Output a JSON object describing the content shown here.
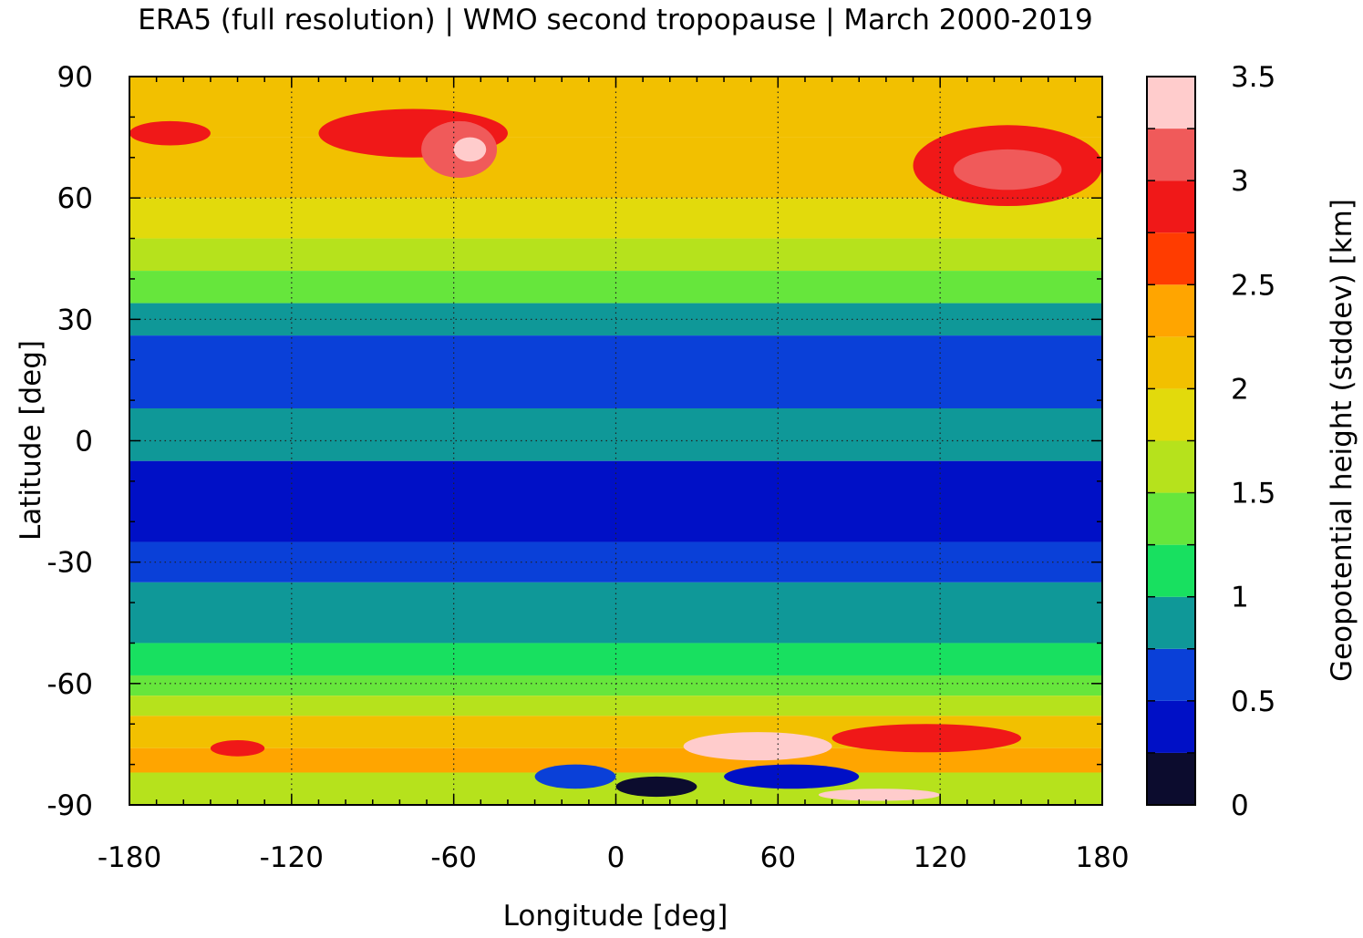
{
  "chart_data": {
    "type": "heatmap",
    "title": "ERA5 (full resolution) | WMO second tropopause | March 2000-2019",
    "xlabel": "Longitude [deg]",
    "ylabel": "Latitude [deg]",
    "colorbar_label": "Geopotential height (stddev) [km]",
    "xlim": [
      -180,
      180
    ],
    "ylim": [
      -90,
      90
    ],
    "xticks": [
      "-180",
      "-120",
      "-60",
      "0",
      "60",
      "120",
      "180"
    ],
    "yticks": [
      "90",
      "60",
      "30",
      "0",
      "-30",
      "-60",
      "-90"
    ],
    "xtick_values": [
      -180,
      -120,
      -60,
      0,
      60,
      120,
      180
    ],
    "ytick_values": [
      90,
      60,
      30,
      0,
      -30,
      -60,
      -90
    ],
    "grid": true,
    "colorbar": {
      "range": [
        0,
        3.5
      ],
      "tick_labels": [
        "0",
        "0.5",
        "1",
        "1.5",
        "2",
        "2.5",
        "3",
        "3.5"
      ],
      "tick_values": [
        0,
        0.5,
        1,
        1.5,
        2,
        2.5,
        3,
        3.5
      ],
      "levels": [
        {
          "from": 0.0,
          "to": 0.25,
          "color": "#0c0c2e"
        },
        {
          "from": 0.25,
          "to": 0.5,
          "color": "#0010c6"
        },
        {
          "from": 0.5,
          "to": 0.75,
          "color": "#0a40d8"
        },
        {
          "from": 0.75,
          "to": 1.0,
          "color": "#0f9898"
        },
        {
          "from": 1.0,
          "to": 1.25,
          "color": "#18e060"
        },
        {
          "from": 1.25,
          "to": 1.5,
          "color": "#66e63c"
        },
        {
          "from": 1.5,
          "to": 1.75,
          "color": "#b6e21c"
        },
        {
          "from": 1.75,
          "to": 2.0,
          "color": "#e2da0c"
        },
        {
          "from": 2.0,
          "to": 2.25,
          "color": "#f2c000"
        },
        {
          "from": 2.25,
          "to": 2.5,
          "color": "#ffa500"
        },
        {
          "from": 2.5,
          "to": 2.75,
          "color": "#ff3c00"
        },
        {
          "from": 2.75,
          "to": 3.0,
          "color": "#f01818"
        },
        {
          "from": 3.0,
          "to": 3.25,
          "color": "#f05a5a"
        },
        {
          "from": 3.25,
          "to": 3.5,
          "color": "#ffcccc"
        }
      ]
    },
    "zonal_bands": [
      {
        "lat_from": 90,
        "lat_to": 75,
        "value": 2.1
      },
      {
        "lat_from": 75,
        "lat_to": 60,
        "value": 2.15
      },
      {
        "lat_from": 60,
        "lat_to": 50,
        "value": 1.85
      },
      {
        "lat_from": 50,
        "lat_to": 42,
        "value": 1.55
      },
      {
        "lat_from": 42,
        "lat_to": 34,
        "value": 1.35
      },
      {
        "lat_from": 34,
        "lat_to": 26,
        "value": 0.9
      },
      {
        "lat_from": 26,
        "lat_to": 8,
        "value": 0.55
      },
      {
        "lat_from": 8,
        "lat_to": -5,
        "value": 0.85
      },
      {
        "lat_from": -5,
        "lat_to": -25,
        "value": 0.4
      },
      {
        "lat_from": -25,
        "lat_to": -35,
        "value": 0.6
      },
      {
        "lat_from": -35,
        "lat_to": -50,
        "value": 0.9
      },
      {
        "lat_from": -50,
        "lat_to": -58,
        "value": 1.15
      },
      {
        "lat_from": -58,
        "lat_to": -63,
        "value": 1.4
      },
      {
        "lat_from": -63,
        "lat_to": -68,
        "value": 1.7
      },
      {
        "lat_from": -68,
        "lat_to": -76,
        "value": 2.1
      },
      {
        "lat_from": -76,
        "lat_to": -82,
        "value": 2.3
      },
      {
        "lat_from": -82,
        "lat_to": -90,
        "value": 1.6
      }
    ],
    "regions": [
      {
        "lon": [
          -110,
          -40
        ],
        "lat": [
          82,
          70
        ],
        "value": 2.8
      },
      {
        "lon": [
          -72,
          -44
        ],
        "lat": [
          79,
          65
        ],
        "value": 3.1
      },
      {
        "lon": [
          -60,
          -48
        ],
        "lat": [
          75,
          69
        ],
        "value": 3.3
      },
      {
        "lon": [
          -180,
          -150
        ],
        "lat": [
          79,
          73
        ],
        "value": 2.85
      },
      {
        "lon": [
          110,
          180
        ],
        "lat": [
          78,
          58
        ],
        "value": 2.8
      },
      {
        "lon": [
          125,
          165
        ],
        "lat": [
          72,
          62
        ],
        "value": 3.05
      },
      {
        "lon": [
          25,
          80
        ],
        "lat": [
          -72,
          -79
        ],
        "value": 3.3
      },
      {
        "lon": [
          80,
          150
        ],
        "lat": [
          -70,
          -77
        ],
        "value": 2.9
      },
      {
        "lon": [
          -150,
          -130
        ],
        "lat": [
          -74,
          -78
        ],
        "value": 2.85
      },
      {
        "lon": [
          0,
          30
        ],
        "lat": [
          -83,
          -88
        ],
        "value": 0.15
      },
      {
        "lon": [
          40,
          90
        ],
        "lat": [
          -80,
          -86
        ],
        "value": 0.4
      },
      {
        "lon": [
          75,
          120
        ],
        "lat": [
          -86,
          -89
        ],
        "value": 3.4
      },
      {
        "lon": [
          -30,
          0
        ],
        "lat": [
          -80,
          -86
        ],
        "value": 0.6
      }
    ]
  }
}
